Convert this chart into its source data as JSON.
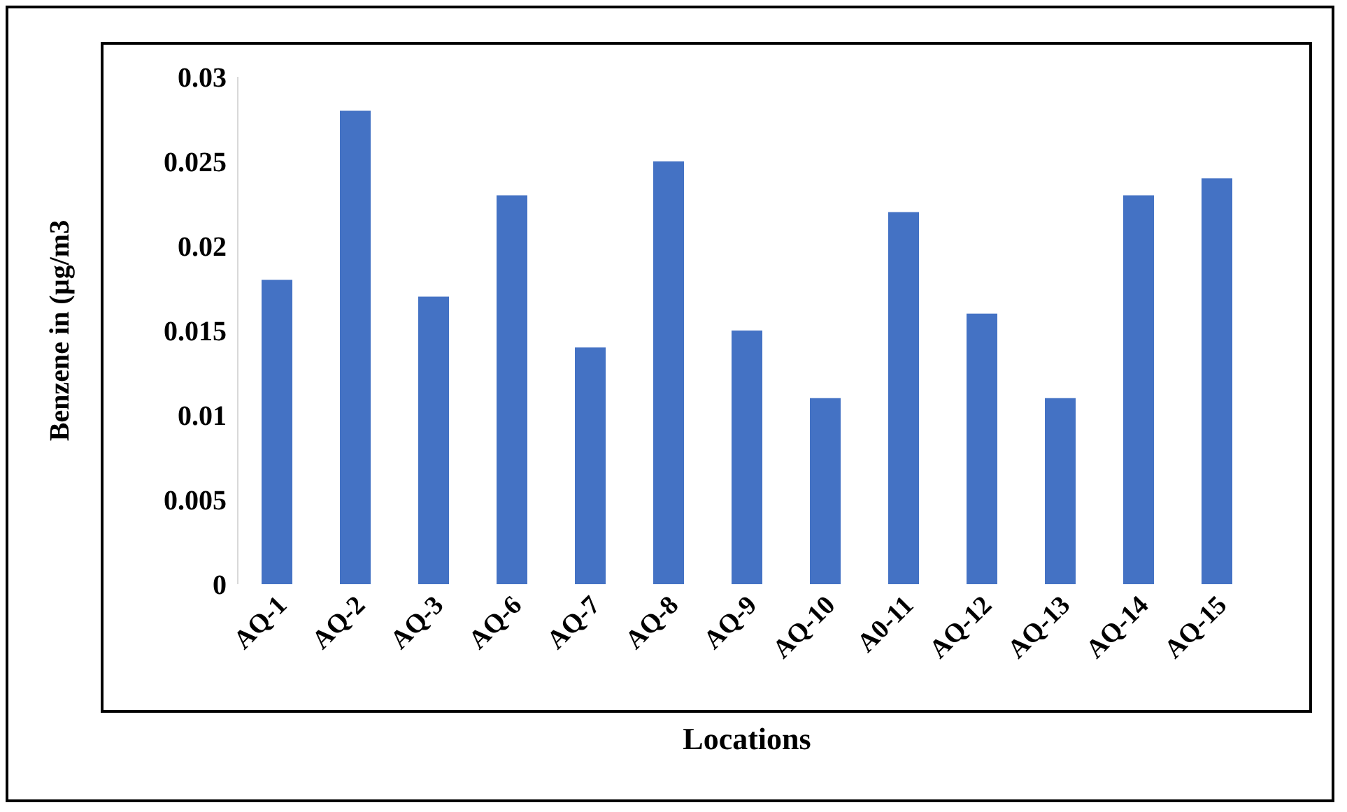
{
  "chart_data": {
    "type": "bar",
    "xlabel": "Locations",
    "ylabel": "Benzene in (µg/m3",
    "categories": [
      "AQ-1",
      "AQ-2",
      "AQ-3",
      "AQ-6",
      "AQ-7",
      "AQ-8",
      "AQ-9",
      "AQ-10",
      "A0-11",
      "AQ-12",
      "AQ-13",
      "AQ-14",
      "AQ-15"
    ],
    "values": [
      0.018,
      0.028,
      0.017,
      0.023,
      0.014,
      0.025,
      0.015,
      0.011,
      0.022,
      0.016,
      0.011,
      0.023,
      0.024
    ],
    "color": "#4472c4",
    "ylim": [
      0,
      0.03
    ],
    "yticks": [
      0,
      0.005,
      0.01,
      0.015,
      0.02,
      0.025,
      0.03
    ],
    "grid": false,
    "legend": false
  }
}
